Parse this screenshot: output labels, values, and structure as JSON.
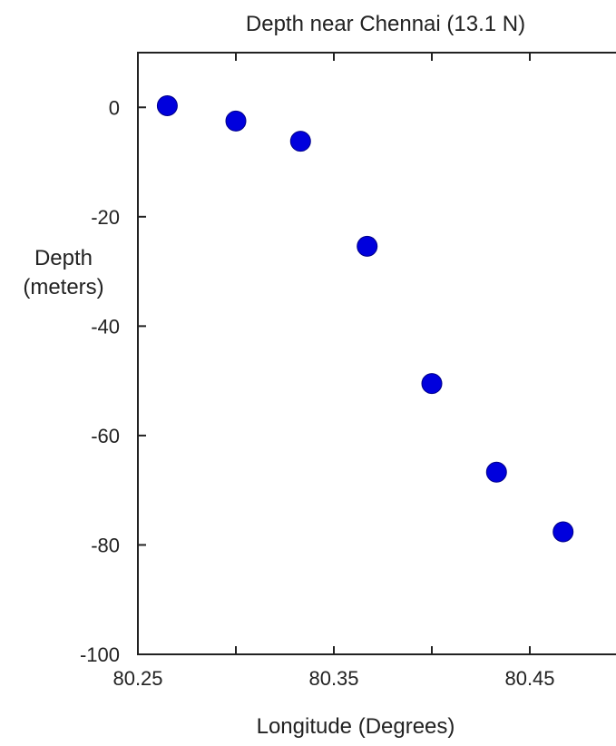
{
  "chart_data": {
    "type": "scatter",
    "title": "Depth near Chennai  (13.1 N)",
    "xlabel": "Longitude (Degrees)",
    "ylabel_lines": [
      "Depth",
      "(meters)"
    ],
    "xlim": [
      80.25,
      80.5
    ],
    "ylim": [
      -100,
      10
    ],
    "xticks": [
      80.25,
      80.3,
      80.35,
      80.4,
      80.45,
      80.5
    ],
    "xtick_labels": [
      "80.25",
      "80.35",
      "80.45"
    ],
    "xtick_labeled_values": [
      80.25,
      80.35,
      80.45
    ],
    "yticks": [
      0,
      -20,
      -40,
      -60,
      -80,
      -100
    ],
    "ytick_labels": [
      "0",
      "-20",
      "-40",
      "-60",
      "-80",
      "-100"
    ],
    "grid": false,
    "marker_color": "#0000dd",
    "series": [
      {
        "x": [
          80.265,
          80.3,
          80.333,
          80.367,
          80.4,
          80.433,
          80.467
        ],
        "y": [
          0.3,
          -2.5,
          -6.2,
          -25.4,
          -50.5,
          -66.7,
          -77.6
        ]
      }
    ]
  }
}
